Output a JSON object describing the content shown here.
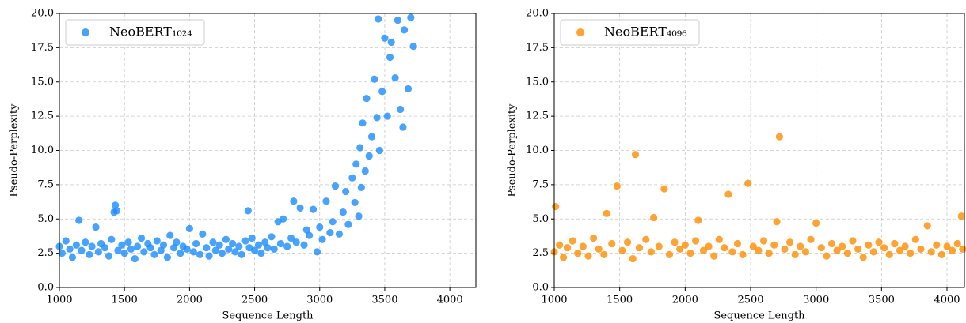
{
  "chart_data": [
    {
      "type": "scatter",
      "xlabel": "Sequence Length",
      "ylabel": "Pseudo-Perplexity",
      "xlim": [
        1000,
        4200
      ],
      "ylim": [
        0,
        20
      ],
      "xticks": [
        1000,
        1500,
        2000,
        2500,
        3000,
        3500,
        4000
      ],
      "yticks": [
        {
          "value": 0,
          "label": "0.0"
        },
        2.5,
        {
          "value": 5,
          "label": "5.0"
        },
        7.5,
        {
          "value": 10,
          "label": "10.0"
        },
        12.5,
        {
          "value": 15,
          "label": "15.0"
        },
        17.5,
        {
          "value": 20,
          "label": "20.0"
        }
      ],
      "grid": true,
      "legend": "upper left",
      "series": [
        {
          "name": "NeoBERT₁₀₂₄",
          "color": "#1a8cff",
          "x": [
            1000,
            1020,
            1050,
            1080,
            1100,
            1130,
            1150,
            1170,
            1200,
            1230,
            1250,
            1280,
            1300,
            1320,
            1350,
            1380,
            1400,
            1420,
            1430,
            1440,
            1450,
            1480,
            1500,
            1530,
            1550,
            1580,
            1600,
            1630,
            1650,
            1680,
            1700,
            1730,
            1750,
            1780,
            1800,
            1830,
            1850,
            1880,
            1900,
            1930,
            1950,
            1980,
            2000,
            2030,
            2050,
            2080,
            2100,
            2130,
            2150,
            2180,
            2200,
            2230,
            2250,
            2280,
            2300,
            2330,
            2350,
            2380,
            2400,
            2430,
            2450,
            2460,
            2480,
            2500,
            2530,
            2550,
            2580,
            2600,
            2630,
            2650,
            2680,
            2700,
            2720,
            2750,
            2780,
            2800,
            2820,
            2850,
            2880,
            2900,
            2920,
            2950,
            2980,
            3000,
            3020,
            3050,
            3080,
            3100,
            3120,
            3150,
            3180,
            3200,
            3220,
            3250,
            3270,
            3280,
            3300,
            3310,
            3320,
            3330,
            3350,
            3360,
            3380,
            3400,
            3420,
            3440,
            3450,
            3460,
            3480,
            3500,
            3520,
            3540,
            3550,
            3580,
            3600,
            3620,
            3640,
            3650,
            3680,
            3700,
            3720
          ],
          "values": [
            3.0,
            2.5,
            3.4,
            2.8,
            2.2,
            3.1,
            4.9,
            2.7,
            3.3,
            2.4,
            3.0,
            4.4,
            2.6,
            3.2,
            2.9,
            2.3,
            3.5,
            5.5,
            6.0,
            5.6,
            2.7,
            3.1,
            2.5,
            3.3,
            2.8,
            2.1,
            3.0,
            3.6,
            2.6,
            3.2,
            2.9,
            2.4,
            3.4,
            2.7,
            3.1,
            2.2,
            3.8,
            2.9,
            3.3,
            2.5,
            3.0,
            2.8,
            4.3,
            2.6,
            3.2,
            2.4,
            3.9,
            2.9,
            2.3,
            3.3,
            2.7,
            3.1,
            2.5,
            3.5,
            2.8,
            3.2,
            2.6,
            3.0,
            2.4,
            3.4,
            5.6,
            2.9,
            3.6,
            2.7,
            3.1,
            2.5,
            3.3,
            2.9,
            3.7,
            2.8,
            4.8,
            3.2,
            5.0,
            3.0,
            3.6,
            6.3,
            3.3,
            5.8,
            3.1,
            4.2,
            3.8,
            5.7,
            2.6,
            4.4,
            3.5,
            6.3,
            4.0,
            4.8,
            7.4,
            3.9,
            5.5,
            7.0,
            4.6,
            8.0,
            6.2,
            9.0,
            5.2,
            10.2,
            7.3,
            12.0,
            8.5,
            13.8,
            9.6,
            11.0,
            15.2,
            12.4,
            19.6,
            10.0,
            14.3,
            18.2,
            12.5,
            16.8,
            17.9,
            15.3,
            19.5,
            13.0,
            11.7,
            18.8,
            14.5,
            19.7,
            17.6
          ]
        }
      ]
    },
    {
      "type": "scatter",
      "xlabel": "Sequence Length",
      "ylabel": "Pseudo-Perplexity",
      "xlim": [
        1000,
        4133
      ],
      "ylim": [
        0,
        20
      ],
      "xticks": [
        1000,
        1500,
        2000,
        2500,
        3000,
        3500,
        4000
      ],
      "yticks": [
        {
          "value": 0,
          "label": "0.0"
        },
        2.5,
        {
          "value": 5,
          "label": "5.0"
        },
        7.5,
        {
          "value": 10,
          "label": "10.0"
        },
        12.5,
        {
          "value": 15,
          "label": "15.0"
        },
        17.5,
        {
          "value": 20,
          "label": "20.0"
        }
      ],
      "grid": true,
      "legend": "upper left",
      "series": [
        {
          "name": "NeoBERT₄₀₉₆",
          "color": "#ff8c00",
          "x": [
            1000,
            1010,
            1040,
            1070,
            1100,
            1140,
            1180,
            1220,
            1260,
            1300,
            1340,
            1380,
            1400,
            1440,
            1480,
            1520,
            1560,
            1600,
            1620,
            1650,
            1700,
            1740,
            1760,
            1800,
            1840,
            1880,
            1920,
            1960,
            2000,
            2040,
            2080,
            2100,
            2140,
            2180,
            2220,
            2260,
            2300,
            2330,
            2360,
            2400,
            2440,
            2480,
            2520,
            2560,
            2600,
            2640,
            2680,
            2700,
            2720,
            2760,
            2800,
            2840,
            2880,
            2920,
            2960,
            3000,
            3040,
            3080,
            3120,
            3160,
            3200,
            3240,
            3280,
            3320,
            3360,
            3400,
            3440,
            3480,
            3520,
            3560,
            3600,
            3640,
            3680,
            3720,
            3760,
            3800,
            3850,
            3880,
            3920,
            3960,
            4000,
            4040,
            4080,
            4110,
            4120
          ],
          "values": [
            2.6,
            5.9,
            3.1,
            2.2,
            2.9,
            3.4,
            2.5,
            3.0,
            2.3,
            3.6,
            2.8,
            2.4,
            5.4,
            3.2,
            7.4,
            2.7,
            3.3,
            2.1,
            9.7,
            2.9,
            3.5,
            2.6,
            5.1,
            3.0,
            7.2,
            2.4,
            3.3,
            2.8,
            3.1,
            2.5,
            3.4,
            4.9,
            2.7,
            3.0,
            2.3,
            3.5,
            2.9,
            6.8,
            2.6,
            3.2,
            2.4,
            7.6,
            3.0,
            2.7,
            3.4,
            2.5,
            3.1,
            4.8,
            11.0,
            2.8,
            3.3,
            2.4,
            3.0,
            2.6,
            3.5,
            4.7,
            2.9,
            2.3,
            3.2,
            2.7,
            3.0,
            2.5,
            3.4,
            2.8,
            2.2,
            3.1,
            2.6,
            3.3,
            2.9,
            2.4,
            3.2,
            2.7,
            3.0,
            2.5,
            3.5,
            2.8,
            4.5,
            2.6,
            3.1,
            2.4,
            3.0,
            2.7,
            3.2,
            5.2,
            2.8
          ]
        }
      ]
    }
  ]
}
